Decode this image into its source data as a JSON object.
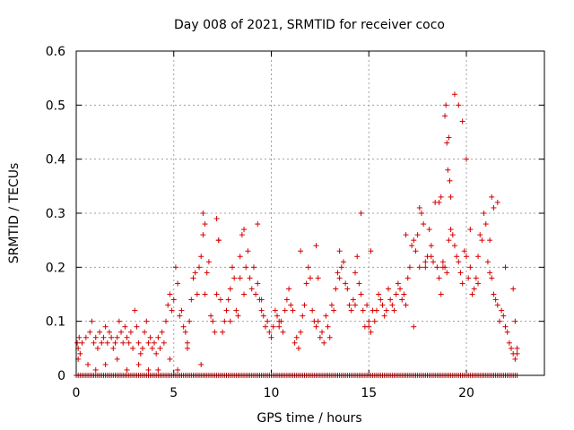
{
  "chart_data": {
    "type": "scatter",
    "title": "Day 008 of 2021, SRMTID for receiver coco",
    "xlabel": "GPS time / hours",
    "ylabel": "SRMTID / TECUs",
    "xlim": [
      0,
      24
    ],
    "ylim": [
      0,
      0.6
    ],
    "xticks": [
      0,
      5,
      10,
      15,
      20
    ],
    "xtick_labels": [
      "0",
      "5",
      "10",
      "15",
      "20"
    ],
    "yticks": [
      0,
      0.1,
      0.2,
      0.3,
      0.4,
      0.5,
      0.6
    ],
    "ytick_labels": [
      "0",
      "0.1",
      "0.2",
      "0.3",
      "0.4",
      "0.5",
      "0.6"
    ],
    "grid": true,
    "marker": "plus",
    "color": "#d40000",
    "series": [
      {
        "name": "SRMTID",
        "x": [
          0.05,
          0.1,
          0.15,
          0.2,
          0.3,
          0.5,
          0.7,
          0.8,
          0.9,
          1.0,
          1.1,
          1.2,
          1.3,
          1.4,
          1.5,
          1.6,
          1.7,
          1.8,
          1.9,
          2.0,
          2.1,
          2.2,
          2.3,
          2.4,
          2.5,
          2.6,
          2.7,
          2.8,
          2.9,
          3.0,
          3.1,
          3.2,
          3.3,
          3.4,
          3.5,
          3.6,
          3.7,
          3.8,
          3.9,
          4.0,
          4.1,
          4.2,
          4.3,
          4.4,
          4.5,
          4.6,
          4.7,
          4.8,
          4.9,
          5.0,
          5.1,
          5.2,
          5.3,
          5.4,
          5.5,
          5.6,
          5.7,
          5.8,
          5.9,
          6.0,
          6.1,
          6.2,
          6.3,
          6.4,
          6.5,
          6.6,
          6.7,
          6.8,
          6.9,
          7.0,
          7.1,
          7.2,
          7.3,
          7.4,
          7.5,
          7.6,
          7.7,
          7.8,
          7.9,
          8.0,
          8.1,
          8.2,
          8.3,
          8.4,
          8.5,
          8.6,
          8.7,
          8.8,
          8.9,
          9.0,
          9.1,
          9.2,
          9.3,
          9.4,
          9.5,
          9.6,
          9.7,
          9.8,
          9.9,
          10.0,
          10.1,
          10.2,
          10.3,
          10.4,
          10.5,
          10.6,
          10.7,
          10.8,
          10.9,
          11.0,
          11.1,
          11.2,
          11.3,
          11.4,
          11.5,
          11.6,
          11.7,
          11.8,
          11.9,
          12.0,
          12.1,
          12.2,
          12.3,
          12.4,
          12.5,
          12.6,
          12.7,
          12.8,
          12.9,
          13.0,
          13.1,
          13.2,
          13.3,
          13.4,
          13.5,
          13.6,
          13.7,
          13.8,
          13.9,
          14.0,
          14.1,
          14.2,
          14.3,
          14.4,
          14.5,
          14.6,
          14.7,
          14.8,
          14.9,
          15.0,
          15.1,
          15.2,
          15.3,
          15.4,
          15.5,
          15.6,
          15.7,
          15.8,
          15.9,
          16.0,
          16.1,
          16.2,
          16.3,
          16.4,
          16.5,
          16.6,
          16.7,
          16.8,
          16.9,
          17.0,
          17.1,
          17.2,
          17.3,
          17.4,
          17.5,
          17.6,
          17.7,
          17.8,
          17.9,
          18.0,
          18.1,
          18.2,
          18.3,
          18.4,
          18.5,
          18.6,
          18.7,
          18.8,
          18.9,
          19.0,
          19.1,
          19.2,
          19.3,
          19.4,
          19.5,
          19.6,
          19.7,
          19.8,
          19.9,
          20.0,
          20.1,
          20.2,
          20.3,
          20.4,
          20.5,
          20.6,
          20.7,
          20.8,
          20.9,
          21.0,
          21.1,
          21.2,
          21.3,
          21.4,
          21.5,
          21.6,
          21.7,
          21.8,
          21.9,
          22.0,
          22.1,
          22.2,
          22.3,
          22.4,
          22.5,
          22.6,
          0.1,
          0.6,
          1.0,
          1.5,
          2.1,
          2.6,
          3.2,
          3.7,
          4.2,
          4.8,
          5.2,
          5.7,
          6.4,
          6.5,
          6.6,
          7.2,
          7.3,
          7.9,
          8.4,
          8.6,
          9.3,
          9.5,
          10.4,
          11.5,
          12.3,
          12.4,
          13.5,
          14.3,
          14.6,
          15.0,
          15.1,
          16.9,
          17.3,
          17.6,
          17.9,
          18.2,
          18.6,
          18.7,
          18.8,
          18.9,
          18.95,
          19.0,
          19.05,
          19.1,
          19.15,
          19.2,
          19.4,
          19.6,
          19.8,
          20.0,
          20.2,
          20.6,
          21.2,
          21.3,
          21.4,
          21.6,
          22.0,
          22.4,
          22.5,
          22.6
        ],
        "y": [
          0.06,
          0.05,
          0.07,
          0.04,
          0.06,
          0.07,
          0.08,
          0.1,
          0.06,
          0.07,
          0.05,
          0.08,
          0.06,
          0.07,
          0.09,
          0.06,
          0.08,
          0.07,
          0.05,
          0.06,
          0.07,
          0.1,
          0.08,
          0.06,
          0.09,
          0.07,
          0.06,
          0.08,
          0.05,
          0.12,
          0.09,
          0.06,
          0.04,
          0.05,
          0.08,
          0.1,
          0.06,
          0.07,
          0.05,
          0.06,
          0.04,
          0.07,
          0.05,
          0.08,
          0.06,
          0.1,
          0.13,
          0.15,
          0.12,
          0.14,
          0.2,
          0.17,
          0.11,
          0.12,
          0.09,
          0.08,
          0.06,
          0.1,
          0.14,
          0.18,
          0.19,
          0.15,
          0.2,
          0.22,
          0.26,
          0.15,
          0.19,
          0.21,
          0.11,
          0.1,
          0.08,
          0.15,
          0.25,
          0.14,
          0.08,
          0.1,
          0.12,
          0.14,
          0.16,
          0.2,
          0.18,
          0.12,
          0.11,
          0.22,
          0.26,
          0.15,
          0.2,
          0.23,
          0.18,
          0.16,
          0.2,
          0.15,
          0.17,
          0.14,
          0.12,
          0.11,
          0.09,
          0.1,
          0.08,
          0.07,
          0.09,
          0.12,
          0.11,
          0.09,
          0.1,
          0.08,
          0.12,
          0.14,
          0.16,
          0.13,
          0.12,
          0.06,
          0.07,
          0.05,
          0.08,
          0.11,
          0.13,
          0.17,
          0.2,
          0.18,
          0.12,
          0.1,
          0.09,
          0.1,
          0.07,
          0.08,
          0.06,
          0.11,
          0.09,
          0.07,
          0.13,
          0.12,
          0.16,
          0.19,
          0.18,
          0.2,
          0.21,
          0.17,
          0.16,
          0.13,
          0.12,
          0.14,
          0.19,
          0.22,
          0.17,
          0.15,
          0.12,
          0.09,
          0.13,
          0.1,
          0.08,
          0.12,
          0.1,
          0.12,
          0.15,
          0.14,
          0.13,
          0.11,
          0.12,
          0.16,
          0.14,
          0.13,
          0.12,
          0.15,
          0.17,
          0.16,
          0.14,
          0.15,
          0.13,
          0.18,
          0.2,
          0.24,
          0.25,
          0.23,
          0.26,
          0.31,
          0.3,
          0.28,
          0.2,
          0.22,
          0.27,
          0.24,
          0.21,
          0.32,
          0.2,
          0.18,
          0.15,
          0.21,
          0.2,
          0.19,
          0.25,
          0.27,
          0.26,
          0.24,
          0.22,
          0.21,
          0.19,
          0.17,
          0.23,
          0.22,
          0.18,
          0.2,
          0.15,
          0.16,
          0.18,
          0.17,
          0.26,
          0.25,
          0.3,
          0.28,
          0.21,
          0.19,
          0.18,
          0.15,
          0.14,
          0.13,
          0.1,
          0.12,
          0.11,
          0.09,
          0.08,
          0.06,
          0.05,
          0.04,
          0.03,
          0.04,
          0.03,
          0.02,
          0.01,
          0.02,
          0.03,
          0.01,
          0.02,
          0.01,
          0.01,
          0.03,
          0.01,
          0.05,
          0.02,
          0.3,
          0.28,
          0.29,
          0.25,
          0.1,
          0.18,
          0.27,
          0.28,
          0.14,
          0.1,
          0.23,
          0.24,
          0.18,
          0.23,
          0.13,
          0.3,
          0.09,
          0.23,
          0.26,
          0.09,
          0.2,
          0.21,
          0.22,
          0.32,
          0.33,
          0.2,
          0.48,
          0.5,
          0.43,
          0.38,
          0.44,
          0.36,
          0.33,
          0.52,
          0.5,
          0.47,
          0.4,
          0.27,
          0.22,
          0.25,
          0.33,
          0.31,
          0.32,
          0.2,
          0.16,
          0.1,
          0.05
        ]
      },
      {
        "name": "Zero baseline",
        "x_range": [
          0,
          22.7
        ],
        "y": 0
      }
    ]
  }
}
